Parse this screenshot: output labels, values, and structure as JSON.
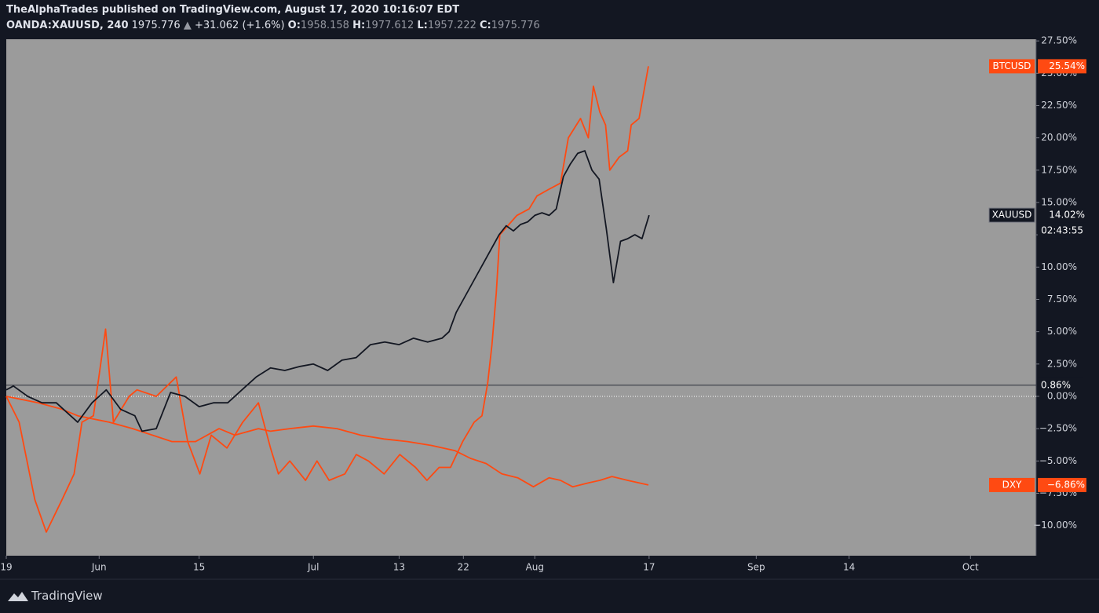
{
  "header": {
    "byline": "TheAlphaTrades published on TradingView.com, August 17, 2020 10:16:07 EDT",
    "symbol": "OANDA:XAUUSD, 240",
    "last": "1975.776",
    "arrow": "▲",
    "change": "+31.062 (+1.6%)",
    "ohlc": [
      {
        "label": "O:",
        "value": "1958.158"
      },
      {
        "label": "H:",
        "value": "1977.612"
      },
      {
        "label": "L:",
        "value": "1957.222"
      },
      {
        "label": "C:",
        "value": "1975.776"
      }
    ]
  },
  "footer": {
    "brand": "TradingView"
  },
  "chart_data": {
    "type": "line",
    "background": "#9b9b9b",
    "grid": false,
    "xlim": [
      0,
      144.2
    ],
    "xticks": [
      {
        "value": 0,
        "label": "19"
      },
      {
        "value": 13,
        "label": "Jun"
      },
      {
        "value": 27,
        "label": "15"
      },
      {
        "value": 43,
        "label": "Jul"
      },
      {
        "value": 55,
        "label": "13"
      },
      {
        "value": 64,
        "label": "22"
      },
      {
        "value": 74,
        "label": "Aug"
      },
      {
        "value": 90,
        "label": "17"
      },
      {
        "value": 105,
        "label": "Sep"
      },
      {
        "value": 118,
        "label": "14"
      },
      {
        "value": 135,
        "label": "Oct"
      }
    ],
    "ylim": [
      -12.33,
      27.63
    ],
    "yticks": [
      {
        "value": -10,
        "label": "−10.00%"
      },
      {
        "value": -7.5,
        "label": "−7.50%"
      },
      {
        "value": -5,
        "label": "−5.00%"
      },
      {
        "value": -2.5,
        "label": "−2.50%"
      },
      {
        "value": 0,
        "label": "0.00%"
      },
      {
        "value": 2.5,
        "label": "2.50%"
      },
      {
        "value": 5,
        "label": "5.00%"
      },
      {
        "value": 7.5,
        "label": "7.50%"
      },
      {
        "value": 10,
        "label": "10.00%"
      },
      {
        "value": 12.5,
        "label": "12.50%"
      },
      {
        "value": 15,
        "label": "15.00%"
      },
      {
        "value": 17.5,
        "label": "17.50%"
      },
      {
        "value": 20,
        "label": "20.00%"
      },
      {
        "value": 22.5,
        "label": "22.50%"
      },
      {
        "value": 25,
        "label": "25.00%"
      },
      {
        "value": 27.5,
        "label": "27.50%"
      }
    ],
    "reference_line": {
      "value": 0.86,
      "label": "0.86%"
    },
    "series": [
      {
        "name": "XAUUSD",
        "color": "#131722",
        "last_label": "14.02%",
        "countdown": "02:43:55",
        "x": [
          0,
          1,
          3,
          5,
          7,
          9,
          10,
          12,
          14,
          16,
          18,
          19,
          21,
          23,
          25,
          27,
          29,
          31,
          33,
          35,
          37,
          39,
          41,
          43,
          45,
          47,
          49,
          51,
          53,
          55,
          57,
          59,
          61,
          62,
          63,
          64,
          65,
          66,
          67,
          68,
          69,
          70,
          71,
          72,
          73,
          74,
          75,
          76,
          77,
          78,
          79,
          80,
          81,
          82,
          83,
          84,
          85,
          86,
          87,
          88,
          89,
          90
        ],
        "values": [
          0.5,
          0.8,
          0,
          -0.5,
          -0.5,
          -1.5,
          -2,
          -0.5,
          0.5,
          -1,
          -1.5,
          -2.7,
          -2.5,
          0.3,
          0,
          -0.8,
          -0.5,
          -0.5,
          0.5,
          1.5,
          2.2,
          2.0,
          2.3,
          2.5,
          2.0,
          2.8,
          3.0,
          4.0,
          4.2,
          4.0,
          4.5,
          4.2,
          4.5,
          5.0,
          6.5,
          7.5,
          8.5,
          9.5,
          10.5,
          11.5,
          12.5,
          13.2,
          12.8,
          13.3,
          13.5,
          14.0,
          14.2,
          14.0,
          14.5,
          17.0,
          18.0,
          18.8,
          19.0,
          17.5,
          16.8,
          13.0,
          8.8,
          12.0,
          12.2,
          12.5,
          12.2,
          14.02
        ]
      },
      {
        "name": "BTCUSD",
        "color": "#ff4a12",
        "last_label": "25.54%",
        "x": [
          0,
          1.8,
          4.0,
          5.6,
          7.8,
          9.5,
          10.6,
          12.2,
          13.9,
          15.0,
          17.2,
          18.3,
          21.0,
          23.8,
          25.4,
          27.1,
          28.7,
          30.9,
          33.1,
          35.3,
          37.0,
          38.1,
          39.7,
          41.9,
          43.5,
          45.2,
          47.4,
          49.0,
          50.7,
          52.9,
          55.1,
          57.3,
          58.9,
          60.6,
          62.2,
          63.9,
          65.5,
          66.6,
          67.4,
          68.0,
          68.6,
          69.1,
          69.9,
          71.5,
          73.2,
          74.3,
          75.9,
          77.6,
          78.7,
          80.4,
          81.5,
          82.2,
          83.1,
          83.9,
          84.5,
          85.8,
          87.0,
          87.5,
          88.6,
          89.9
        ],
        "values": [
          0,
          -2,
          -8,
          -10.5,
          -8,
          -6,
          -2,
          -1.5,
          5.2,
          -2,
          0,
          0.5,
          0,
          1.5,
          -3.5,
          -6,
          -3,
          -4,
          -2,
          -0.5,
          -4,
          -6,
          -5,
          -6.5,
          -5,
          -6.5,
          -6,
          -4.5,
          -5,
          -6,
          -4.5,
          -5.5,
          -6.5,
          -5.5,
          -5.5,
          -3.5,
          -2,
          -1.5,
          1,
          4,
          8,
          12.5,
          13,
          14,
          14.5,
          15.5,
          16,
          16.5,
          20,
          21.5,
          20,
          24,
          22,
          21,
          17.5,
          18.5,
          19,
          21,
          21.5,
          25.54
        ]
      },
      {
        "name": "DXY",
        "color": "#ff4a12",
        "last_label": "−6.86%",
        "x": [
          0,
          4.5,
          7.8,
          10.0,
          14.4,
          17.7,
          23.2,
          26.5,
          29.8,
          32.0,
          35.3,
          37.0,
          39.7,
          43.0,
          46.3,
          49.6,
          52.9,
          56.2,
          59.5,
          62.8,
          65.0,
          67.2,
          69.4,
          71.6,
          73.8,
          76.0,
          77.6,
          79.3,
          81.5,
          83.1,
          84.8,
          87.0,
          89.9
        ],
        "values": [
          0,
          -0.5,
          -1,
          -1.5,
          -2,
          -2.5,
          -3.5,
          -3.5,
          -2.5,
          -3,
          -2.5,
          -2.7,
          -2.5,
          -2.3,
          -2.5,
          -3,
          -3.3,
          -3.5,
          -3.8,
          -4.2,
          -4.8,
          -5.2,
          -6,
          -6.3,
          -7,
          -6.3,
          -6.5,
          -7,
          -6.7,
          -6.5,
          -6.2,
          -6.5,
          -6.86
        ]
      }
    ]
  }
}
